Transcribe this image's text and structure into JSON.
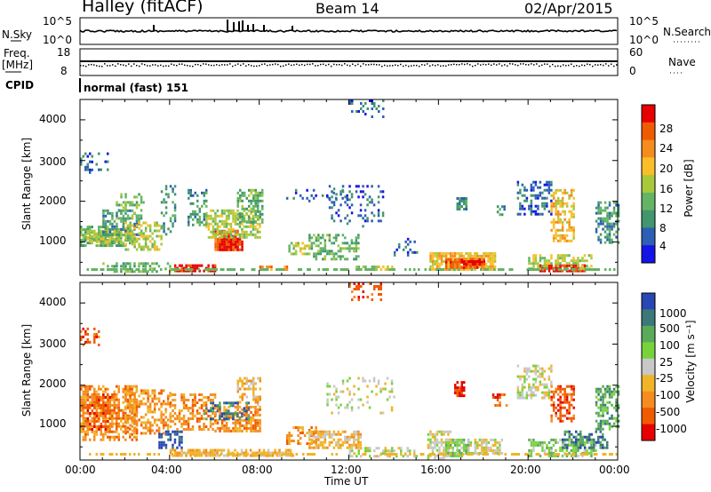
{
  "header": {
    "title": "Halley (fitACF)",
    "beam": "Beam 14",
    "date": "02/Apr/2015"
  },
  "panels": {
    "nsky_label": "N.Sky",
    "nsky_ticks": [
      "10^5",
      "10^0"
    ],
    "nsearch_label": "N.Search",
    "nsearch_ticks": [
      "10^5",
      "10^0"
    ],
    "freq_label": "Freq.",
    "freq_unit": "[MHz]",
    "freq_ticks": [
      "18",
      "8"
    ],
    "nave_label": "Nave",
    "nave_ticks": [
      "60",
      "0"
    ],
    "cpid_label": "CPID",
    "cpid_value": "normal (fast) 151"
  },
  "chart_data": [
    {
      "type": "heatmap",
      "name": "power",
      "ylabel": "Slant Range [km]",
      "xlabel": "Time UT",
      "xlim_hours": [
        0,
        24
      ],
      "ylim_km": [
        180,
        4500
      ],
      "yticks": [
        "1000",
        "2000",
        "3000",
        "4000"
      ],
      "colorbar": {
        "label": "Power [dB]",
        "ticks": [
          "28",
          "24",
          "20",
          "16",
          "12",
          "8",
          "4"
        ],
        "colors": [
          "#e60000",
          "#f05a00",
          "#f58c1e",
          "#fabe28",
          "#aac83c",
          "#64b464",
          "#41966e",
          "#2d5fb4",
          "#1414e6"
        ]
      }
    },
    {
      "type": "heatmap",
      "name": "velocity",
      "ylabel": "Slant Range [km]",
      "xlabel": "Time UT",
      "xlim_hours": [
        0,
        24
      ],
      "ylim_km": [
        180,
        4500
      ],
      "yticks": [
        "1000",
        "2000",
        "3000",
        "4000"
      ],
      "colorbar": {
        "label": "Velocity [m s⁻¹]",
        "ticks": [
          "1000",
          "500",
          "100",
          "25",
          "-25",
          "-100",
          "-500",
          "-1000"
        ],
        "colors": [
          "#2846b4",
          "#3c7878",
          "#5aaa5a",
          "#78d23c",
          "#c8c8c8",
          "#f0b428",
          "#f58c1e",
          "#f05a00",
          "#e60000"
        ]
      }
    }
  ],
  "time_axis": {
    "ticks": [
      "00:00",
      "04:00",
      "08:00",
      "12:00",
      "16:00",
      "20:00",
      "00:00"
    ],
    "label": "Time UT"
  }
}
